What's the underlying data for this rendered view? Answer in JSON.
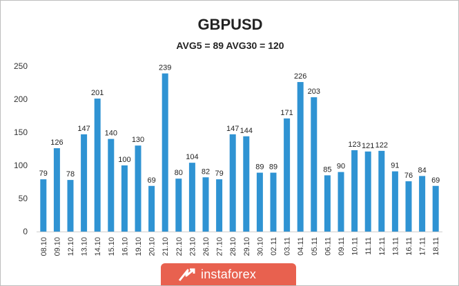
{
  "chart_data": {
    "type": "bar",
    "title": "GBPUSD",
    "subtitle": "AVG5 = 89 AVG30 = 120",
    "xlabel": "",
    "ylabel": "",
    "ylim": [
      0,
      250
    ],
    "yticks": [
      0,
      50,
      100,
      150,
      200,
      250
    ],
    "grid": false,
    "legend": "none",
    "bar_color": "#2f93d3",
    "categories": [
      "08.10",
      "09.10",
      "12.10",
      "13.10",
      "14.10",
      "15.10",
      "16.10",
      "19.10",
      "20.10",
      "21.10",
      "22.10",
      "23.10",
      "26.10",
      "27.10",
      "28.10",
      "29.10",
      "30.10",
      "02.11",
      "03.11",
      "04.11",
      "05.11",
      "06.11",
      "09.11",
      "10.11",
      "11.11",
      "12.11",
      "13.11",
      "16.11",
      "17.11",
      "18.11"
    ],
    "values": [
      79,
      126,
      78,
      147,
      201,
      140,
      100,
      130,
      69,
      239,
      80,
      104,
      82,
      79,
      147,
      144,
      89,
      89,
      171,
      226,
      203,
      85,
      90,
      123,
      121,
      122,
      91,
      76,
      84,
      69
    ]
  },
  "watermark": {
    "text": "instaforex",
    "color": "#e8614f"
  }
}
